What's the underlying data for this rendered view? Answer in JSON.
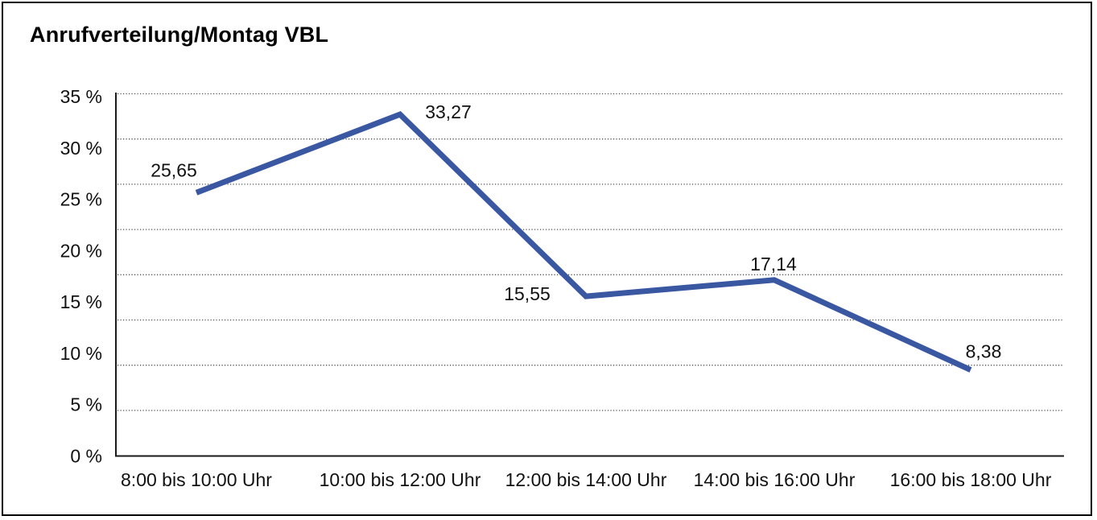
{
  "header": {
    "title": "Anrufverteilung/Montag VBL"
  },
  "chart_data": {
    "type": "line",
    "title": "Anrufverteilung/Montag VBL",
    "categories": [
      "8:00 bis 10:00 Uhr",
      "10:00 bis 12:00 Uhr",
      "12:00 bis 14:00 Uhr",
      "14:00 bis 16:00 Uhr",
      "16:00 bis 18:00 Uhr"
    ],
    "values": [
      25.65,
      33.27,
      15.55,
      17.14,
      8.38
    ],
    "point_labels": [
      "25,65",
      "33,27",
      "15,55",
      "17,14",
      "8,38"
    ],
    "xlabel": "",
    "ylabel": "",
    "ylim": [
      0,
      35
    ],
    "y_tick_step": 5,
    "y_tick_labels": [
      "35 %",
      "30 %",
      "25 %",
      "20 %",
      "15 %",
      "10 %",
      "5 %",
      "0 %"
    ],
    "grid": "horizontal-dotted",
    "legend": "none",
    "colors": {
      "line": "#3a57a2",
      "text": "#111111",
      "axis": "#1a1a1a",
      "grid": "#4d4d4d",
      "background": "#ffffff",
      "frame_border": "#000000"
    }
  }
}
